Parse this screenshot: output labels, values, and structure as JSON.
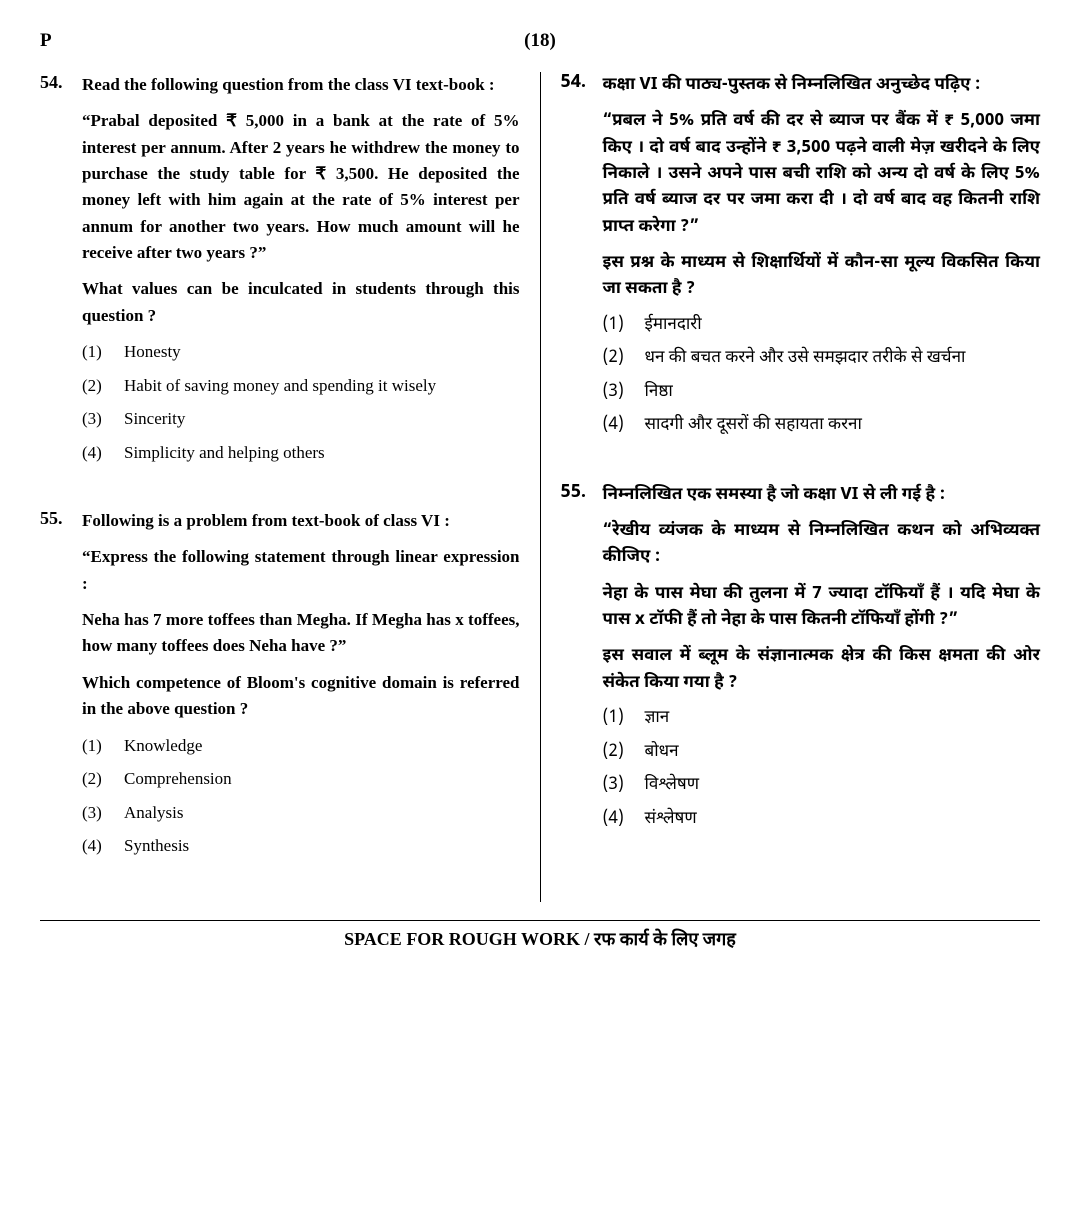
{
  "header": {
    "left": "P",
    "center": "(18)"
  },
  "left": {
    "questions": [
      {
        "num": "54.",
        "stem": "Read the following question from the class VI text-book :",
        "quote": "“Prabal deposited ₹ 5,000 in a bank at the rate of 5% interest per annum. After 2 years he withdrew the money to purchase the study table for ₹ 3,500. He deposited the money left with him again at the rate of 5% interest per annum for another two years. How much amount will he receive after two years ?”",
        "prompt": "What values can be inculcated in students through this question ?",
        "options": [
          {
            "n": "(1)",
            "t": "Honesty"
          },
          {
            "n": "(2)",
            "t": "Habit of saving money and spending it wisely"
          },
          {
            "n": "(3)",
            "t": "Sincerity"
          },
          {
            "n": "(4)",
            "t": "Simplicity and helping others"
          }
        ]
      },
      {
        "num": "55.",
        "stem": "Following is a problem from text-book of class VI :",
        "quote": "“Express the following statement through linear expression :",
        "sub": "Neha has 7 more toffees than Megha. If Megha has x toffees, how many toffees does Neha have ?”",
        "prompt": "Which competence of Bloom's cognitive domain is referred in the above question ?",
        "options": [
          {
            "n": "(1)",
            "t": "Knowledge"
          },
          {
            "n": "(2)",
            "t": "Comprehension"
          },
          {
            "n": "(3)",
            "t": "Analysis"
          },
          {
            "n": "(4)",
            "t": "Synthesis"
          }
        ]
      }
    ]
  },
  "right": {
    "questions": [
      {
        "num": "54.",
        "stem": "कक्षा VI की पाठ्य-पुस्तक से निम्नलिखित अनुच्छेद पढ़िए :",
        "quote": "“प्रबल ने 5% प्रति वर्ष की दर से ब्याज पर बैंक में ₹ 5,000 जमा किए । दो वर्ष बाद उन्होंने ₹ 3,500 पढ़ने वाली मेज़ खरीदने के लिए निकाले । उसने अपने पास बची राशि को अन्य दो वर्ष के लिए 5% प्रति वर्ष ब्याज दर पर जमा करा दी । दो वर्ष बाद वह कितनी राशि प्राप्त करेगा ?”",
        "prompt": "इस प्रश्न के माध्यम से शिक्षार्थियों में कौन-सा मूल्य विकसित किया जा सकता है ?",
        "options": [
          {
            "n": "(1)",
            "t": "ईमानदारी"
          },
          {
            "n": "(2)",
            "t": "धन की बचत करने और उसे समझदार तरीके से खर्चना"
          },
          {
            "n": "(3)",
            "t": "निष्ठा"
          },
          {
            "n": "(4)",
            "t": "सादगी और दूसरों की सहायता करना"
          }
        ]
      },
      {
        "num": "55.",
        "stem": "निम्नलिखित एक समस्या है जो कक्षा VI से ली गई है :",
        "quote": "“रेखीय व्यंजक के माध्यम से निम्नलिखित कथन को अभिव्यक्त कीजिए :",
        "sub": "नेहा के पास मेघा की तुलना में 7 ज्यादा टॉफियाँ हैं । यदि मेघा के पास x टॉफी हैं तो नेहा के पास कितनी टॉफियाँ होंगी ?”",
        "prompt": "इस सवाल में ब्लूम के संज्ञानात्मक क्षेत्र की किस क्षमता की ओर संकेत किया गया है ?",
        "options": [
          {
            "n": "(1)",
            "t": "ज्ञान"
          },
          {
            "n": "(2)",
            "t": "बोधन"
          },
          {
            "n": "(3)",
            "t": "विश्लेषण"
          },
          {
            "n": "(4)",
            "t": "संश्लेषण"
          }
        ]
      }
    ]
  },
  "footer": "SPACE FOR ROUGH WORK / रफ कार्य के लिए जगह"
}
